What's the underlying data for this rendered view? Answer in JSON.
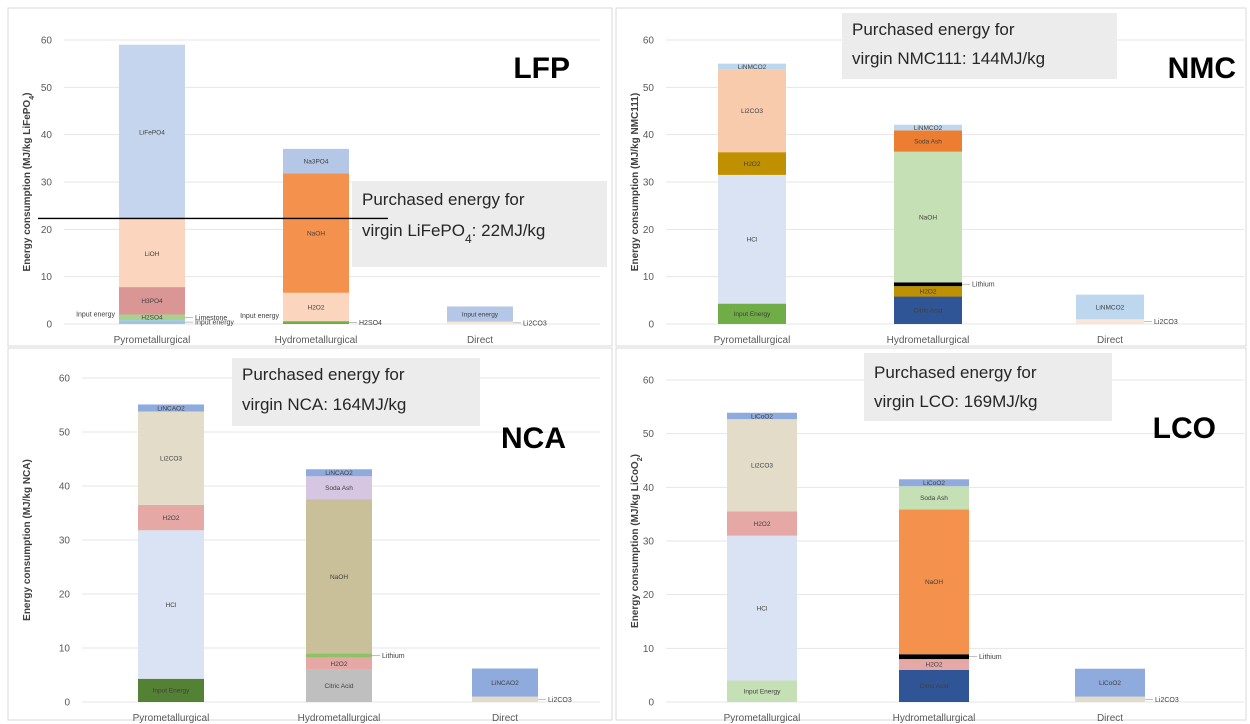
{
  "colors": {
    "LiFePO4": "#b4c7e7",
    "LiOH": "#f8cbad",
    "H3PO4": "#d99694",
    "H2SO4": "#a9d18e",
    "Limestone": "#70ad47",
    "Input energy": "#9dc3e6",
    "Na3PO4": "#b4c7e7",
    "NaOH": "#f4914c",
    "H2O2": "#fbe5d6",
    "Li2CO3": "#f8cbad",
    "LiNMCO2": "#bdd7ee",
    "LiNCAO2": "#8faadc",
    "LiCoO2": "#8faadc",
    "Soda Ash": "#ed7d31",
    "Lithium": "#000000",
    "HCl": "#dae3f3",
    "Citric Acid": "#bfbfbf"
  },
  "chart_data": [
    {
      "type": "bar",
      "stacked": true,
      "title": "LFP",
      "ylabel": "Energy consumption (MJ/kg LiFePO",
      "ylabel_sub": "4",
      "ylabel_end": ")",
      "ylim": [
        0,
        60
      ],
      "yticks": [
        "0",
        "10",
        "20",
        "30",
        "40",
        "50",
        "60"
      ],
      "categories": [
        "Pyrometallurgical",
        "Hydrometallurgical",
        "Direct"
      ],
      "reference_line": 22.3,
      "note": {
        "line1": "Purchased energy for",
        "line2_pre": "virgin LiFePO",
        "line2_sub": "4",
        "line2_post": ": 22MJ/kg"
      },
      "stacks": [
        [
          {
            "name": "Input energy",
            "value": 0.8,
            "label": "",
            "side": "Input energy",
            "side_pos": "left",
            "color": "#9dc3e6"
          },
          {
            "name": "H2SO4",
            "value": 1.2,
            "label": "H2SO4",
            "side": "Limestone",
            "side_pos": "right",
            "color": "#a9d18e"
          },
          {
            "name": "H3PO4",
            "value": 5.8,
            "label": "H3PO4",
            "color": "#d99694"
          },
          {
            "name": "LiOH",
            "value": 14.2,
            "label": "LiOH",
            "color": "#fbd5bd"
          },
          {
            "name": "LiFePO4",
            "value": 37.0,
            "label": "LiFePO4",
            "color": "#c5d5ee"
          }
        ],
        [
          {
            "name": "H2SO4",
            "value": 0.6,
            "label": "",
            "side": "H2SO4",
            "side_pos": "right",
            "side2": "Input energy",
            "color": "#70ad47"
          },
          {
            "name": "H2O2",
            "value": 6.0,
            "label": "H2O2",
            "color": "#fbd5bd"
          },
          {
            "name": "NaOH",
            "value": 25.2,
            "label": "NaOH",
            "color": "#f4914c"
          },
          {
            "name": "Na3PO4",
            "value": 5.2,
            "label": "Na3PO4",
            "color": "#b4c7e7"
          }
        ],
        [
          {
            "name": "Li2CO3",
            "value": 0.5,
            "label": "",
            "side": "Li2CO3",
            "side_pos": "right",
            "color": "#fbe5d6"
          },
          {
            "name": "Input energy",
            "value": 3.2,
            "label": "Input energy",
            "color": "#b4c7e7"
          }
        ]
      ]
    },
    {
      "type": "bar",
      "stacked": true,
      "title": "NMC",
      "ylabel": "Energy consumption (MJ/kg NMC111)",
      "ylim": [
        0,
        60
      ],
      "yticks": [
        "0",
        "10",
        "20",
        "30",
        "40",
        "50",
        "60"
      ],
      "categories": [
        "Pyrometallurgical",
        "Hydrometallurgical",
        "Direct"
      ],
      "note": {
        "line1": "Purchased energy for",
        "line2": "virgin NMC111: 144MJ/kg"
      },
      "stacks": [
        [
          {
            "name": "Input Energy",
            "value": 4.3,
            "label": "Input Energy",
            "color": "#70ad47"
          },
          {
            "name": "HCl",
            "value": 27.2,
            "label": "HCl",
            "color": "#dae3f3"
          },
          {
            "name": "H2O2",
            "value": 4.8,
            "label": "H2O2",
            "color": "#bf9000"
          },
          {
            "name": "Li2CO3",
            "value": 17.5,
            "label": "Li2CO3",
            "color": "#f8cbad"
          },
          {
            "name": "LiNMCO2",
            "value": 1.2,
            "label": "LiNMCO2",
            "color": "#bdd7ee"
          }
        ],
        [
          {
            "name": "Citric Acid",
            "value": 5.8,
            "label": "Citric Acid",
            "color": "#2f5597"
          },
          {
            "name": "H2O2",
            "value": 2.2,
            "label": "H2O2",
            "color": "#bf9000"
          },
          {
            "name": "Lithium",
            "value": 0.8,
            "label": "",
            "side": "Lithium",
            "side_pos": "right",
            "color": "#000000"
          },
          {
            "name": "NaOH",
            "value": 27.6,
            "label": "NaOH",
            "color": "#c5e0b4"
          },
          {
            "name": "Soda Ash",
            "value": 4.5,
            "label": "Soda Ash",
            "color": "#ed7d31"
          },
          {
            "name": "LiNMCO2",
            "value": 1.2,
            "label": "LiNMCO2",
            "color": "#bdd7ee"
          }
        ],
        [
          {
            "name": "Li2CO3",
            "value": 1.0,
            "label": "",
            "side": "Li2CO3",
            "side_pos": "right",
            "color": "#fbe5d6"
          },
          {
            "name": "LiNMCO2",
            "value": 5.2,
            "label": "LiNMCO2",
            "color": "#bdd7ee"
          }
        ]
      ]
    },
    {
      "type": "bar",
      "stacked": true,
      "title": "NCA",
      "ylabel": "Energy consumption (MJ/kg NCA)",
      "ylim": [
        0,
        60
      ],
      "yticks": [
        "0",
        "10",
        "20",
        "30",
        "40",
        "50",
        "60"
      ],
      "categories": [
        "Pyrometallurgical",
        "Hydrometallurgical",
        "Direct"
      ],
      "note": {
        "line1": "Purchased energy for",
        "line2": "virgin NCA: 164MJ/kg"
      },
      "stacks": [
        [
          {
            "name": "Input Energy",
            "value": 4.3,
            "label": "Input Energy",
            "color": "#548235"
          },
          {
            "name": "HCl",
            "value": 27.5,
            "label": "HCl",
            "color": "#dae3f3"
          },
          {
            "name": "H2O2",
            "value": 4.7,
            "label": "H2O2",
            "color": "#e6a8a4"
          },
          {
            "name": "Li2CO3",
            "value": 17.3,
            "label": "Li2CO3",
            "color": "#e2dcc9"
          },
          {
            "name": "LiNCAO2",
            "value": 1.3,
            "label": "LiNCAO2",
            "color": "#8faadc"
          }
        ],
        [
          {
            "name": "Citric Acid",
            "value": 6.0,
            "label": "Citric Acid",
            "color": "#bfbfbf"
          },
          {
            "name": "H2O2",
            "value": 2.2,
            "label": "H2O2",
            "color": "#e6a8a4"
          },
          {
            "name": "Lithium",
            "value": 0.8,
            "label": "",
            "side": "Lithium",
            "side_pos": "right",
            "color": "#8ec266"
          },
          {
            "name": "NaOH",
            "value": 28.5,
            "label": "NaOH",
            "color": "#c9bf98"
          },
          {
            "name": "Soda Ash",
            "value": 4.3,
            "label": "Soda Ash",
            "color": "#d7c6e2"
          },
          {
            "name": "LiNCAO2",
            "value": 1.3,
            "label": "LiNCAO2",
            "color": "#8faadc"
          }
        ],
        [
          {
            "name": "Li2CO3",
            "value": 1.0,
            "label": "",
            "side": "Li2CO3",
            "side_pos": "right",
            "color": "#e2dcc9"
          },
          {
            "name": "LiNCAO2",
            "value": 5.2,
            "label": "LiNCAO2",
            "color": "#8faadc"
          }
        ]
      ]
    },
    {
      "type": "bar",
      "stacked": true,
      "title": "LCO",
      "ylabel": "Energy consumption (MJ/kg LiCoO",
      "ylabel_sub": "2",
      "ylabel_end": ")",
      "ylim": [
        0,
        60
      ],
      "yticks": [
        "0",
        "10",
        "20",
        "30",
        "40",
        "50",
        "60"
      ],
      "categories": [
        "Pyrometallurgical",
        "Hydrometallurgical",
        "Direct"
      ],
      "note": {
        "line1": "Purchased energy for",
        "line2": "virgin LCO: 169MJ/kg"
      },
      "stacks": [
        [
          {
            "name": "Input Energy",
            "value": 4.0,
            "label": "Input Energy",
            "color": "#c5e0b4"
          },
          {
            "name": "HCl",
            "value": 27.0,
            "label": "HCl",
            "color": "#dae3f3"
          },
          {
            "name": "H2O2",
            "value": 4.5,
            "label": "H2O2",
            "color": "#e6a8a4"
          },
          {
            "name": "Li2CO3",
            "value": 17.2,
            "label": "Li2CO3",
            "color": "#e2dcc9"
          },
          {
            "name": "LiCoO2",
            "value": 1.2,
            "label": "LiCoO2",
            "color": "#8faadc"
          }
        ],
        [
          {
            "name": "Citric Acid",
            "value": 6.0,
            "label": "Citric Acid",
            "color": "#2f5597"
          },
          {
            "name": "H2O2",
            "value": 2.0,
            "label": "H2O2",
            "color": "#e6a8a4"
          },
          {
            "name": "Lithium",
            "value": 0.9,
            "label": "",
            "side": "Lithium",
            "side_pos": "right",
            "color": "#000000"
          },
          {
            "name": "NaOH",
            "value": 27.0,
            "label": "NaOH",
            "color": "#f4914c"
          },
          {
            "name": "Soda Ash",
            "value": 4.3,
            "label": "Soda Ash",
            "color": "#c5e0b4"
          },
          {
            "name": "LiCoO2",
            "value": 1.3,
            "label": "LiCoO2",
            "color": "#8faadc"
          }
        ],
        [
          {
            "name": "Li2CO3",
            "value": 1.0,
            "label": "",
            "side": "Li2CO3",
            "side_pos": "right",
            "color": "#e2dcc9"
          },
          {
            "name": "LiCoO2",
            "value": 5.2,
            "label": "LiCoO2",
            "color": "#8faadc"
          }
        ]
      ]
    }
  ]
}
